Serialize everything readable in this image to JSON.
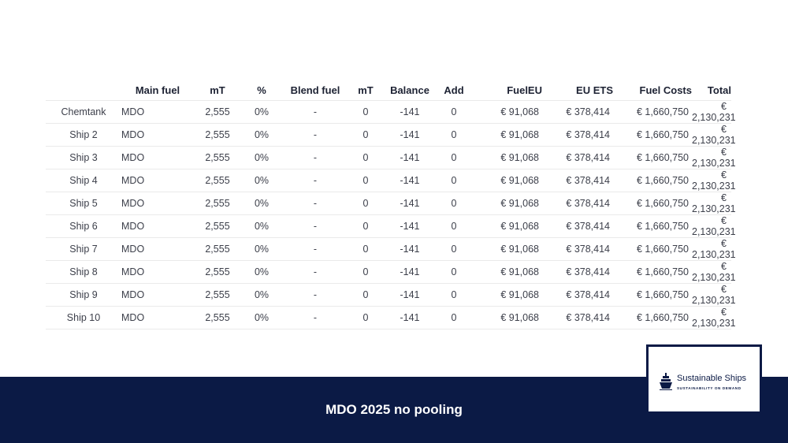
{
  "table": {
    "headers": [
      "",
      "Main fuel",
      "mT",
      "%",
      "Blend fuel",
      "mT",
      "Balance",
      "Add",
      "FuelEU",
      "EU ETS",
      "Fuel Costs",
      "Total"
    ],
    "rows": [
      [
        "Chemtank",
        "MDO",
        "2,555",
        "0%",
        "-",
        "0",
        "-141",
        "0",
        "€ 91,068",
        "€ 378,414",
        "€ 1,660,750",
        "€ 2,130,231"
      ],
      [
        "Ship 2",
        "MDO",
        "2,555",
        "0%",
        "-",
        "0",
        "-141",
        "0",
        "€ 91,068",
        "€ 378,414",
        "€ 1,660,750",
        "€ 2,130,231"
      ],
      [
        "Ship 3",
        "MDO",
        "2,555",
        "0%",
        "-",
        "0",
        "-141",
        "0",
        "€ 91,068",
        "€ 378,414",
        "€ 1,660,750",
        "€ 2,130,231"
      ],
      [
        "Ship 4",
        "MDO",
        "2,555",
        "0%",
        "-",
        "0",
        "-141",
        "0",
        "€ 91,068",
        "€ 378,414",
        "€ 1,660,750",
        "€ 2,130,231"
      ],
      [
        "Ship 5",
        "MDO",
        "2,555",
        "0%",
        "-",
        "0",
        "-141",
        "0",
        "€ 91,068",
        "€ 378,414",
        "€ 1,660,750",
        "€ 2,130,231"
      ],
      [
        "Ship 6",
        "MDO",
        "2,555",
        "0%",
        "-",
        "0",
        "-141",
        "0",
        "€ 91,068",
        "€ 378,414",
        "€ 1,660,750",
        "€ 2,130,231"
      ],
      [
        "Ship 7",
        "MDO",
        "2,555",
        "0%",
        "-",
        "0",
        "-141",
        "0",
        "€ 91,068",
        "€ 378,414",
        "€ 1,660,750",
        "€ 2,130,231"
      ],
      [
        "Ship 8",
        "MDO",
        "2,555",
        "0%",
        "-",
        "0",
        "-141",
        "0",
        "€ 91,068",
        "€ 378,414",
        "€ 1,660,750",
        "€ 2,130,231"
      ],
      [
        "Ship 9",
        "MDO",
        "2,555",
        "0%",
        "-",
        "0",
        "-141",
        "0",
        "€ 91,068",
        "€ 378,414",
        "€ 1,660,750",
        "€ 2,130,231"
      ],
      [
        "Ship 10",
        "MDO",
        "2,555",
        "0%",
        "-",
        "0",
        "-141",
        "0",
        "€ 91,068",
        "€ 378,414",
        "€ 1,660,750",
        "€ 2,130,231"
      ]
    ]
  },
  "footer": {
    "title": "MDO 2025 no pooling"
  },
  "logo": {
    "name": "Sustainable Ships",
    "tagline": "SUSTAINABILITY ON DEMAND",
    "icon": "ship-icon"
  },
  "colors": {
    "navy": "#0b1a45",
    "rule": "#eaeaea",
    "text": "#3c3f4a"
  }
}
